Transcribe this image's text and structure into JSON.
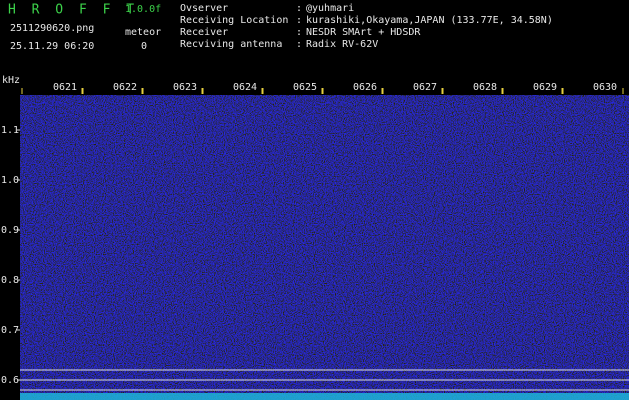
{
  "header": {
    "app": "H R O F F T",
    "version": "1.0.0f",
    "file": "2511290620.png",
    "mode": "meteor",
    "datetime": "25.11.29 06:20",
    "count": "0",
    "info": [
      {
        "label": "Ovserver",
        "value": "@yuhmari"
      },
      {
        "label": "Receiving Location",
        "value": "kurashiki,Okayama,JAPAN (133.77E, 34.58N)"
      },
      {
        "label": "Receiver",
        "value": "NESDR SMArt + HDSDR"
      },
      {
        "label": "Recviving antenna",
        "value": "Radix RV-62V"
      }
    ],
    "separator": ":"
  },
  "chart_data": {
    "type": "spectrogram",
    "ylabel": "kHz",
    "categories": [
      "0621",
      "0622",
      "0623",
      "0624",
      "0625",
      "0626",
      "0627",
      "0628",
      "0629",
      "0630"
    ],
    "ylim": [
      0.56,
      1.2
    ],
    "yticks": [
      {
        "value": 0.6,
        "label": "0.6"
      },
      {
        "value": 0.7,
        "label": "0.7"
      },
      {
        "value": 0.8,
        "label": "0.8"
      },
      {
        "value": 0.9,
        "label": "0.9"
      },
      {
        "value": 1,
        "label": "1.0"
      },
      {
        "value": 1.1,
        "label": "1.1"
      }
    ]
  }
}
